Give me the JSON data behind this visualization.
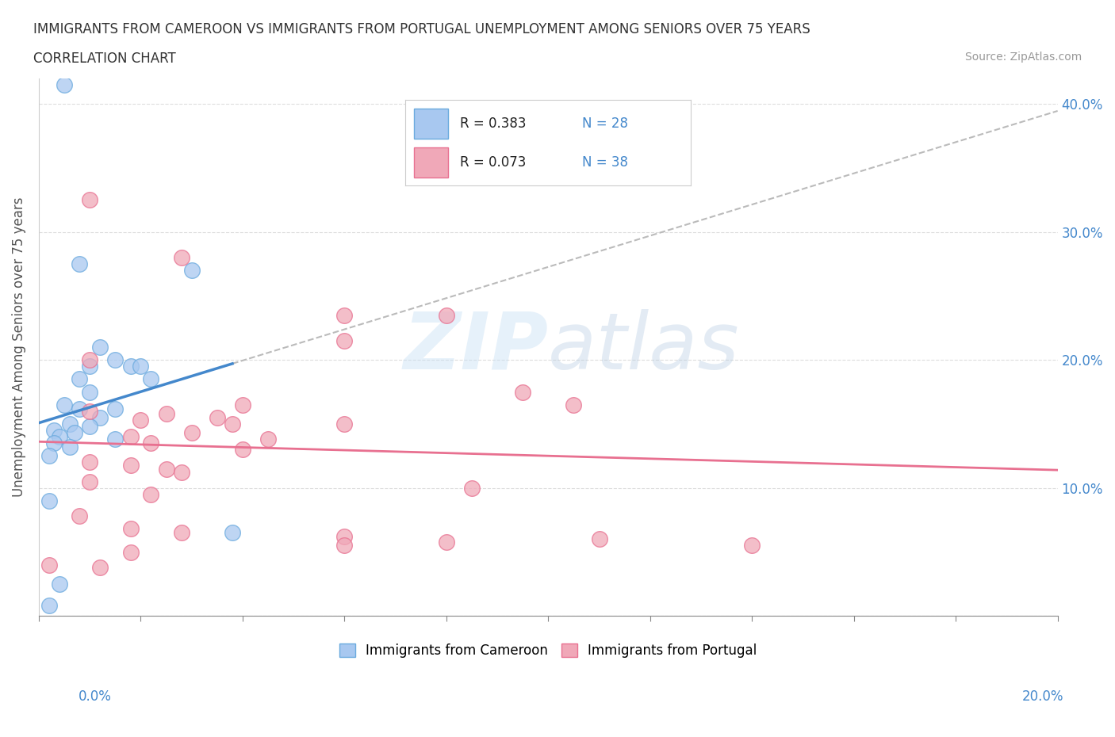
{
  "title_line1": "IMMIGRANTS FROM CAMEROON VS IMMIGRANTS FROM PORTUGAL UNEMPLOYMENT AMONG SENIORS OVER 75 YEARS",
  "title_line2": "CORRELATION CHART",
  "source": "Source: ZipAtlas.com",
  "ylabel": "Unemployment Among Seniors over 75 years",
  "xlim": [
    0.0,
    0.2
  ],
  "ylim": [
    0.0,
    0.42
  ],
  "R_cameroon": 0.383,
  "N_cameroon": 28,
  "R_portugal": 0.073,
  "N_portugal": 38,
  "color_cameroon": "#a8c8f0",
  "color_portugal": "#f0a8b8",
  "edge_cameroon": "#6aaade",
  "edge_portugal": "#e87090",
  "trendline_cameroon": "#4488cc",
  "trendline_portugal": "#e87090",
  "trendline_dashed_color": "#bbbbbb",
  "watermark": "ZIPatlas",
  "cameroon_points": [
    [
      0.005,
      0.415
    ],
    [
      0.008,
      0.275
    ],
    [
      0.03,
      0.27
    ],
    [
      0.012,
      0.21
    ],
    [
      0.015,
      0.2
    ],
    [
      0.01,
      0.195
    ],
    [
      0.018,
      0.195
    ],
    [
      0.02,
      0.195
    ],
    [
      0.008,
      0.185
    ],
    [
      0.022,
      0.185
    ],
    [
      0.01,
      0.175
    ],
    [
      0.005,
      0.165
    ],
    [
      0.008,
      0.162
    ],
    [
      0.015,
      0.162
    ],
    [
      0.012,
      0.155
    ],
    [
      0.006,
      0.15
    ],
    [
      0.01,
      0.148
    ],
    [
      0.003,
      0.145
    ],
    [
      0.007,
      0.143
    ],
    [
      0.004,
      0.14
    ],
    [
      0.015,
      0.138
    ],
    [
      0.003,
      0.135
    ],
    [
      0.006,
      0.132
    ],
    [
      0.002,
      0.125
    ],
    [
      0.002,
      0.09
    ],
    [
      0.038,
      0.065
    ],
    [
      0.004,
      0.025
    ],
    [
      0.002,
      0.008
    ]
  ],
  "portugal_points": [
    [
      0.01,
      0.325
    ],
    [
      0.028,
      0.28
    ],
    [
      0.06,
      0.235
    ],
    [
      0.08,
      0.235
    ],
    [
      0.06,
      0.215
    ],
    [
      0.01,
      0.2
    ],
    [
      0.04,
      0.165
    ],
    [
      0.095,
      0.175
    ],
    [
      0.105,
      0.165
    ],
    [
      0.01,
      0.16
    ],
    [
      0.025,
      0.158
    ],
    [
      0.035,
      0.155
    ],
    [
      0.02,
      0.153
    ],
    [
      0.038,
      0.15
    ],
    [
      0.06,
      0.15
    ],
    [
      0.03,
      0.143
    ],
    [
      0.018,
      0.14
    ],
    [
      0.045,
      0.138
    ],
    [
      0.022,
      0.135
    ],
    [
      0.04,
      0.13
    ],
    [
      0.01,
      0.12
    ],
    [
      0.018,
      0.118
    ],
    [
      0.025,
      0.115
    ],
    [
      0.028,
      0.112
    ],
    [
      0.01,
      0.105
    ],
    [
      0.085,
      0.1
    ],
    [
      0.022,
      0.095
    ],
    [
      0.008,
      0.078
    ],
    [
      0.018,
      0.068
    ],
    [
      0.028,
      0.065
    ],
    [
      0.06,
      0.062
    ],
    [
      0.08,
      0.058
    ],
    [
      0.06,
      0.055
    ],
    [
      0.11,
      0.06
    ],
    [
      0.14,
      0.055
    ],
    [
      0.018,
      0.05
    ],
    [
      0.002,
      0.04
    ],
    [
      0.012,
      0.038
    ]
  ]
}
